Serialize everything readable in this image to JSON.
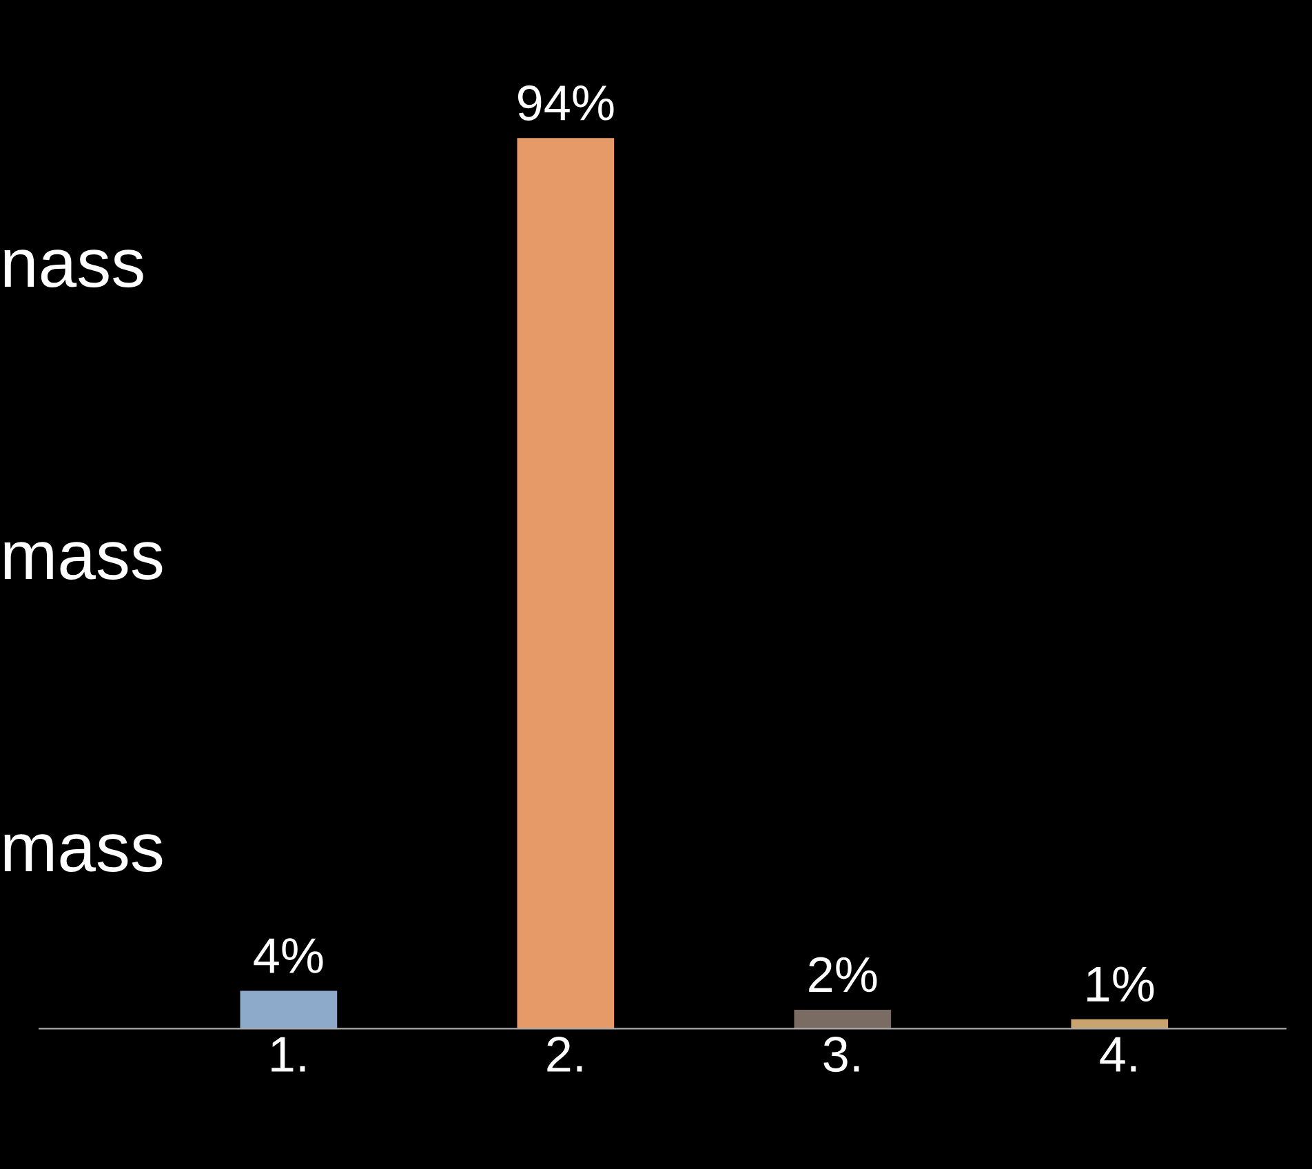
{
  "chart_data": {
    "type": "bar",
    "categories": [
      "1.",
      "2.",
      "3.",
      "4."
    ],
    "values": [
      4,
      94,
      2,
      1
    ],
    "colors": [
      "#8eaacb",
      "#e59a68",
      "#7a6b63",
      "#c9a46e"
    ],
    "value_labels": [
      "4%",
      "94%",
      "2%",
      "1%"
    ],
    "annotations": [
      "nass",
      "mass",
      "mass"
    ]
  }
}
